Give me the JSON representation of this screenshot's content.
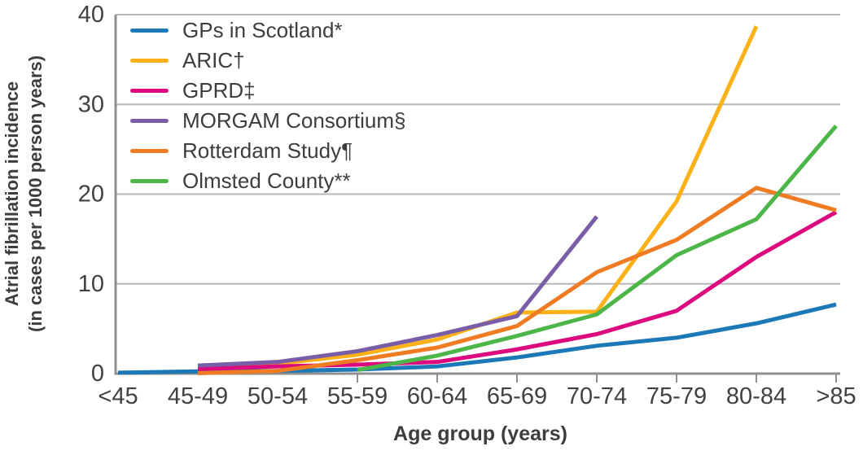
{
  "chart_data": {
    "type": "line",
    "title": "",
    "xlabel": "Age group (years)",
    "ylabel_line1": "Atrial fibrillation incidence",
    "ylabel_line2": "(in cases per 1000 person years)",
    "categories": [
      "<45",
      "45-49",
      "50-54",
      "55-59",
      "60-64",
      "65-69",
      "70-74",
      "75-79",
      "80-84",
      ">85"
    ],
    "yticks": [
      0,
      10,
      20,
      30,
      40
    ],
    "ylim": [
      0,
      40
    ],
    "grid": "horizontal",
    "legend_position": "top-left-inside",
    "series": [
      {
        "name": "GPs in Scotland*",
        "color": "#1b79b7",
        "values": [
          0.1,
          0.25,
          0.3,
          0.45,
          0.8,
          1.8,
          3.1,
          4.0,
          5.6,
          7.7
        ]
      },
      {
        "name": "ARIC†",
        "color": "#fbb117",
        "values": [
          null,
          0.65,
          1.1,
          2.1,
          3.8,
          6.8,
          6.9,
          19.2,
          38.7,
          null
        ]
      },
      {
        "name": "GPRD‡",
        "color": "#dc0a7e",
        "values": [
          null,
          0.5,
          0.8,
          1.0,
          1.3,
          2.7,
          4.4,
          7.0,
          13.0,
          18.0
        ]
      },
      {
        "name": "MORGAM Consortium§",
        "color": "#7a5da7",
        "values": [
          null,
          0.9,
          1.3,
          2.5,
          4.3,
          6.4,
          17.5,
          null,
          null,
          null
        ]
      },
      {
        "name": "Rotterdam Study¶",
        "color": "#ef7c23",
        "values": [
          null,
          0.05,
          0.3,
          1.5,
          2.9,
          5.3,
          11.3,
          14.9,
          20.7,
          18.2
        ]
      },
      {
        "name": "Olmsted County**",
        "color": "#4db648",
        "values": [
          null,
          null,
          null,
          0.4,
          2.0,
          4.2,
          6.6,
          13.2,
          17.2,
          27.6
        ]
      }
    ]
  },
  "axes": {
    "grid_color": "#b7b7b7",
    "axis_color": "#8f8f8f",
    "text_color": "#3d3d3d"
  }
}
